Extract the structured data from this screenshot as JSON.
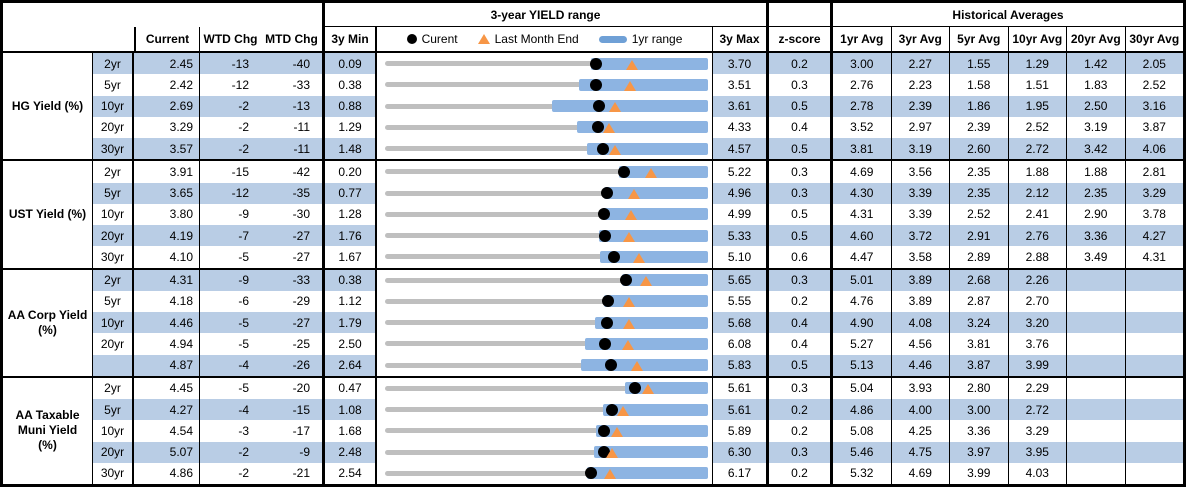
{
  "header": {
    "chart_group_title": "3-year YIELD range",
    "hist_group_title": "Historical Averages",
    "col_current": "Current",
    "col_wtd": "WTD Chg",
    "col_mtd": "MTD Chg",
    "col_min": "3y Min",
    "col_max": "3y Max",
    "col_z": "z-score",
    "avg_cols": [
      "1yr Avg",
      "3yr Avg",
      "5yr Avg",
      "10yr Avg",
      "20yr Avg",
      "30yr Avg"
    ],
    "legend": {
      "current_label": "Curent",
      "last_month_label": "Last Month End",
      "range_label": "1yr range",
      "current_icon": "black-dot",
      "last_month_icon": "orange-triangle",
      "range_icon": "blue-range-bar"
    }
  },
  "colors": {
    "row_shade": "#B9CDE5",
    "range_bar": "#8DB4E2",
    "track_gray": "#BFBFBF",
    "last_month_orange": "#F79646",
    "legend_bar_blue": "#6FA0D6",
    "dot_black": "#000000"
  },
  "chart_data": {
    "type": "table",
    "description": "Yield dashboard; per row a bullet chart on a 3y min-max track: gray 3y range line, blue 1yr range bar, black dot = current, orange triangle = last month end. Values in percent; WTD/MTD changes in bp.",
    "sections": [
      {
        "label_lines": [
          "HG Yield (%)"
        ],
        "rows": [
          {
            "tenor": "2yr",
            "current": "2.45",
            "wtd": "-13",
            "mtd": "-40",
            "min3y": "0.09",
            "max3y": "3.70",
            "z": "0.2",
            "avgs": [
              "3.00",
              "2.27",
              "1.55",
              "1.29",
              "1.42",
              "2.05"
            ],
            "r1lo": 2.39,
            "r1hi": 3.7,
            "lme": 2.85
          },
          {
            "tenor": "5yr",
            "current": "2.42",
            "wtd": "-12",
            "mtd": "-33",
            "min3y": "0.38",
            "max3y": "3.51",
            "z": "0.3",
            "avgs": [
              "2.76",
              "2.23",
              "1.58",
              "1.51",
              "1.83",
              "2.52"
            ],
            "r1lo": 2.26,
            "r1hi": 3.51,
            "lme": 2.75
          },
          {
            "tenor": "10yr",
            "current": "2.69",
            "wtd": "-2",
            "mtd": "-13",
            "min3y": "0.88",
            "max3y": "3.61",
            "z": "0.5",
            "avgs": [
              "2.78",
              "2.39",
              "1.86",
              "1.95",
              "2.50",
              "3.16"
            ],
            "r1lo": 2.29,
            "r1hi": 3.61,
            "lme": 2.82
          },
          {
            "tenor": "20yr",
            "current": "3.29",
            "wtd": "-2",
            "mtd": "-11",
            "min3y": "1.29",
            "max3y": "4.33",
            "z": "0.4",
            "avgs": [
              "3.52",
              "2.97",
              "2.39",
              "2.52",
              "3.19",
              "3.87"
            ],
            "r1lo": 3.1,
            "r1hi": 4.33,
            "lme": 3.4
          },
          {
            "tenor": "30yr",
            "current": "3.57",
            "wtd": "-2",
            "mtd": "-11",
            "min3y": "1.48",
            "max3y": "4.57",
            "z": "0.5",
            "avgs": [
              "3.81",
              "3.19",
              "2.60",
              "2.72",
              "3.42",
              "4.06"
            ],
            "r1lo": 3.41,
            "r1hi": 4.57,
            "lme": 3.68
          }
        ]
      },
      {
        "label_lines": [
          "UST Yield (%)"
        ],
        "rows": [
          {
            "tenor": "2yr",
            "current": "3.91",
            "wtd": "-15",
            "mtd": "-42",
            "min3y": "0.20",
            "max3y": "5.22",
            "z": "0.3",
            "avgs": [
              "4.69",
              "3.56",
              "2.35",
              "1.88",
              "1.88",
              "2.81"
            ],
            "r1lo": 3.83,
            "r1hi": 5.22,
            "lme": 4.33
          },
          {
            "tenor": "5yr",
            "current": "3.65",
            "wtd": "-12",
            "mtd": "-35",
            "min3y": "0.77",
            "max3y": "4.96",
            "z": "0.3",
            "avgs": [
              "4.30",
              "3.39",
              "2.35",
              "2.12",
              "2.35",
              "3.29"
            ],
            "r1lo": 3.61,
            "r1hi": 4.96,
            "lme": 4.0
          },
          {
            "tenor": "10yr",
            "current": "3.80",
            "wtd": "-9",
            "mtd": "-30",
            "min3y": "1.28",
            "max3y": "4.99",
            "z": "0.5",
            "avgs": [
              "4.31",
              "3.39",
              "2.52",
              "2.41",
              "2.90",
              "3.78"
            ],
            "r1lo": 3.77,
            "r1hi": 4.99,
            "lme": 4.1
          },
          {
            "tenor": "20yr",
            "current": "4.19",
            "wtd": "-7",
            "mtd": "-27",
            "min3y": "1.76",
            "max3y": "5.33",
            "z": "0.5",
            "avgs": [
              "4.60",
              "3.72",
              "2.91",
              "2.76",
              "3.36",
              "4.27"
            ],
            "r1lo": 4.12,
            "r1hi": 5.33,
            "lme": 4.46
          },
          {
            "tenor": "30yr",
            "current": "4.10",
            "wtd": "-5",
            "mtd": "-27",
            "min3y": "1.67",
            "max3y": "5.10",
            "z": "0.6",
            "avgs": [
              "4.47",
              "3.58",
              "2.89",
              "2.88",
              "3.49",
              "4.31"
            ],
            "r1lo": 3.95,
            "r1hi": 5.1,
            "lme": 4.37
          }
        ]
      },
      {
        "label_lines": [
          "AA Corp Yield",
          "(%)"
        ],
        "rows": [
          {
            "tenor": "2yr",
            "current": "4.31",
            "wtd": "-9",
            "mtd": "-33",
            "min3y": "0.38",
            "max3y": "5.65",
            "z": "0.3",
            "avgs": [
              "5.01",
              "3.89",
              "2.68",
              "2.26",
              "",
              ""
            ],
            "r1lo": 4.24,
            "r1hi": 5.65,
            "lme": 4.64
          },
          {
            "tenor": "5yr",
            "current": "4.18",
            "wtd": "-6",
            "mtd": "-29",
            "min3y": "1.12",
            "max3y": "5.55",
            "z": "0.2",
            "avgs": [
              "4.76",
              "3.89",
              "2.87",
              "2.70",
              "",
              ""
            ],
            "r1lo": 4.12,
            "r1hi": 5.55,
            "lme": 4.47
          },
          {
            "tenor": "10yr",
            "current": "4.46",
            "wtd": "-5",
            "mtd": "-27",
            "min3y": "1.79",
            "max3y": "5.68",
            "z": "0.4",
            "avgs": [
              "4.90",
              "4.08",
              "3.24",
              "3.20",
              "",
              ""
            ],
            "r1lo": 4.32,
            "r1hi": 5.68,
            "lme": 4.73
          },
          {
            "tenor": "20yr",
            "current": "4.94",
            "wtd": "-5",
            "mtd": "-25",
            "min3y": "2.50",
            "max3y": "6.08",
            "z": "0.4",
            "avgs": [
              "5.27",
              "4.56",
              "3.81",
              "3.76",
              "",
              ""
            ],
            "r1lo": 4.72,
            "r1hi": 6.08,
            "lme": 5.19
          },
          {
            "tenor": "",
            "current": "4.87",
            "wtd": "-4",
            "mtd": "-26",
            "min3y": "2.64",
            "max3y": "5.83",
            "z": "0.5",
            "avgs": [
              "5.13",
              "4.46",
              "3.87",
              "3.99",
              "",
              ""
            ],
            "r1lo": 4.58,
            "r1hi": 5.83,
            "lme": 5.13
          }
        ]
      },
      {
        "label_lines": [
          "AA Taxable",
          "Muni Yield",
          "(%)"
        ],
        "rows": [
          {
            "tenor": "2yr",
            "current": "4.45",
            "wtd": "-5",
            "mtd": "-20",
            "min3y": "0.47",
            "max3y": "5.61",
            "z": "0.3",
            "avgs": [
              "5.04",
              "3.93",
              "2.80",
              "2.29",
              "",
              ""
            ],
            "r1lo": 4.29,
            "r1hi": 5.61,
            "lme": 4.65
          },
          {
            "tenor": "5yr",
            "current": "4.27",
            "wtd": "-4",
            "mtd": "-15",
            "min3y": "1.08",
            "max3y": "5.61",
            "z": "0.2",
            "avgs": [
              "4.86",
              "4.00",
              "3.00",
              "2.72",
              "",
              ""
            ],
            "r1lo": 4.14,
            "r1hi": 5.61,
            "lme": 4.42
          },
          {
            "tenor": "10yr",
            "current": "4.54",
            "wtd": "-3",
            "mtd": "-17",
            "min3y": "1.68",
            "max3y": "5.89",
            "z": "0.2",
            "avgs": [
              "5.08",
              "4.25",
              "3.36",
              "3.29",
              "",
              ""
            ],
            "r1lo": 4.43,
            "r1hi": 5.89,
            "lme": 4.71
          },
          {
            "tenor": "20yr",
            "current": "5.07",
            "wtd": "-2",
            "mtd": "-9",
            "min3y": "2.48",
            "max3y": "6.30",
            "z": "0.3",
            "avgs": [
              "5.46",
              "4.75",
              "3.97",
              "3.95",
              "",
              ""
            ],
            "r1lo": 4.95,
            "r1hi": 6.3,
            "lme": 5.16
          },
          {
            "tenor": "30yr",
            "current": "4.86",
            "wtd": "-2",
            "mtd": "-21",
            "min3y": "2.54",
            "max3y": "6.17",
            "z": "0.2",
            "avgs": [
              "5.32",
              "4.69",
              "3.99",
              "4.03",
              "",
              ""
            ],
            "r1lo": 4.81,
            "r1hi": 6.17,
            "lme": 5.07
          }
        ]
      }
    ]
  }
}
